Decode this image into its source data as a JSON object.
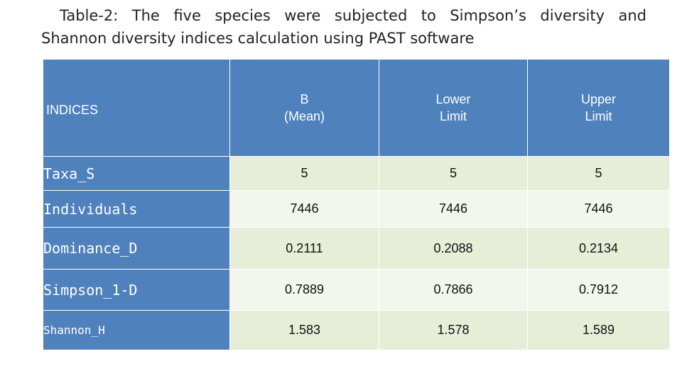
{
  "caption": {
    "line1": "Table-2: The five species were subjected to Simpson’s diversity and",
    "line2": "Shannon diversity indices calculation using PAST software"
  },
  "table": {
    "header": {
      "indices": "INDICES",
      "b_line1": "B",
      "b_line2": "(Mean)",
      "lower_line1": "Lower",
      "lower_line2": "Limit",
      "upper_line1": "Upper",
      "upper_line2": "Limit"
    },
    "rows": [
      {
        "label": "Taxa_S",
        "mean": "5",
        "lower": "5",
        "upper": "5"
      },
      {
        "label": "Individuals",
        "mean": "7446",
        "lower": "7446",
        "upper": "7446"
      },
      {
        "label": "Dominance_D",
        "mean": "0.2111",
        "lower": "0.2088",
        "upper": "0.2134"
      },
      {
        "label": "Simpson_1-D",
        "mean": "0.7889",
        "lower": "0.7866",
        "upper": "0.7912"
      },
      {
        "label": "Shannon_H",
        "mean": "1.583",
        "lower": "1.578",
        "upper": "1.589"
      }
    ]
  },
  "colors": {
    "header_blue": "#4f81bd",
    "row_green_dark": "#e6eed8",
    "row_green_light": "#f2f6ec"
  }
}
